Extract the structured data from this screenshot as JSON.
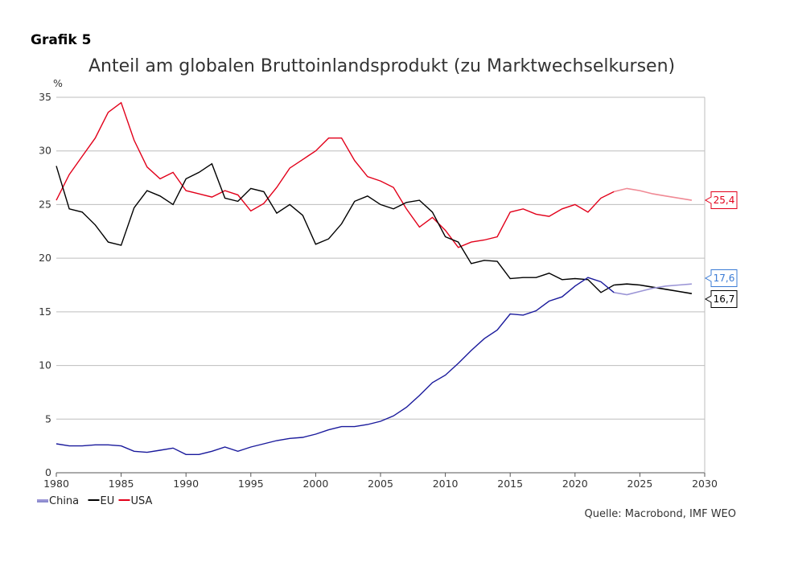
{
  "header": {
    "label": "Grafik 5"
  },
  "source": "Quelle: Macrobond, IMF WEO",
  "chart_data": {
    "type": "line",
    "title": "Anteil am globalen Bruttoinlandsprodukt (zu Marktwechselkursen)",
    "ylabel": "%",
    "xlabel": "",
    "xlim": [
      1980,
      2030
    ],
    "ylim": [
      0,
      35
    ],
    "x_ticks": [
      "1980",
      "1985",
      "1990",
      "1995",
      "2000",
      "2005",
      "2010",
      "2015",
      "2020",
      "2025",
      "2030"
    ],
    "y_ticks": [
      "0",
      "5",
      "10",
      "15",
      "20",
      "25",
      "30",
      "35"
    ],
    "grid": true,
    "legend_position": "bottom-left",
    "forecast_start": 2023,
    "colors": {
      "China": "#1a1a9c",
      "China_forecast": "#9b95d6",
      "EU": "#000000",
      "EU_forecast": "#000000",
      "USA": "#e2001a",
      "USA_forecast": "#f08a95"
    },
    "x": [
      1980,
      1981,
      1982,
      1983,
      1984,
      1985,
      1986,
      1987,
      1988,
      1989,
      1990,
      1991,
      1992,
      1993,
      1994,
      1995,
      1996,
      1997,
      1998,
      1999,
      2000,
      2001,
      2002,
      2003,
      2004,
      2005,
      2006,
      2007,
      2008,
      2009,
      2010,
      2011,
      2012,
      2013,
      2014,
      2015,
      2016,
      2017,
      2018,
      2019,
      2020,
      2021,
      2022,
      2023,
      2024,
      2025,
      2026,
      2027,
      2028,
      2029
    ],
    "series": [
      {
        "name": "China",
        "values": [
          2.7,
          2.5,
          2.5,
          2.6,
          2.6,
          2.5,
          2.0,
          1.9,
          2.1,
          2.3,
          1.7,
          1.7,
          2.0,
          2.4,
          2.0,
          2.4,
          2.7,
          3.0,
          3.2,
          3.3,
          3.6,
          4.0,
          4.3,
          4.3,
          4.5,
          4.8,
          5.3,
          6.1,
          7.2,
          8.4,
          9.1,
          10.2,
          11.4,
          12.5,
          13.3,
          14.8,
          14.7,
          15.1,
          16.0,
          16.4,
          17.4,
          18.2,
          17.8,
          16.8,
          16.6,
          16.9,
          17.2,
          17.4,
          17.5,
          17.6
        ]
      },
      {
        "name": "EU",
        "values": [
          28.6,
          24.6,
          24.3,
          23.1,
          21.5,
          21.2,
          24.7,
          26.3,
          25.8,
          25.0,
          27.4,
          28.0,
          28.8,
          25.6,
          25.3,
          26.5,
          26.2,
          24.2,
          25.0,
          24.0,
          21.3,
          21.8,
          23.2,
          25.3,
          25.8,
          25.0,
          24.6,
          25.2,
          25.4,
          24.3,
          22.0,
          21.5,
          19.5,
          19.8,
          19.7,
          18.1,
          18.2,
          18.2,
          18.6,
          18.0,
          18.1,
          18.0,
          16.8,
          17.5,
          17.6,
          17.5,
          17.3,
          17.1,
          16.9,
          16.7
        ]
      },
      {
        "name": "USA",
        "values": [
          25.4,
          27.8,
          29.5,
          31.2,
          33.6,
          34.5,
          31.0,
          28.5,
          27.4,
          28.0,
          26.3,
          26.0,
          25.7,
          26.3,
          25.9,
          24.4,
          25.1,
          26.6,
          28.4,
          29.2,
          30.0,
          31.2,
          31.2,
          29.1,
          27.6,
          27.2,
          26.6,
          24.6,
          22.9,
          23.8,
          22.6,
          21.0,
          21.5,
          21.7,
          22.0,
          24.3,
          24.6,
          24.1,
          23.9,
          24.6,
          25.0,
          24.3,
          25.6,
          26.2,
          26.5,
          26.3,
          26.0,
          25.8,
          25.6,
          25.4
        ]
      }
    ],
    "end_labels": [
      {
        "series": "USA",
        "text": "25,4",
        "value": 25.4,
        "color": "#e2001a"
      },
      {
        "series": "China",
        "text": "17,6",
        "value": 17.6,
        "color": "#3a7bd5"
      },
      {
        "series": "EU",
        "text": "16,7",
        "value": 16.7,
        "color": "#000000"
      }
    ]
  }
}
